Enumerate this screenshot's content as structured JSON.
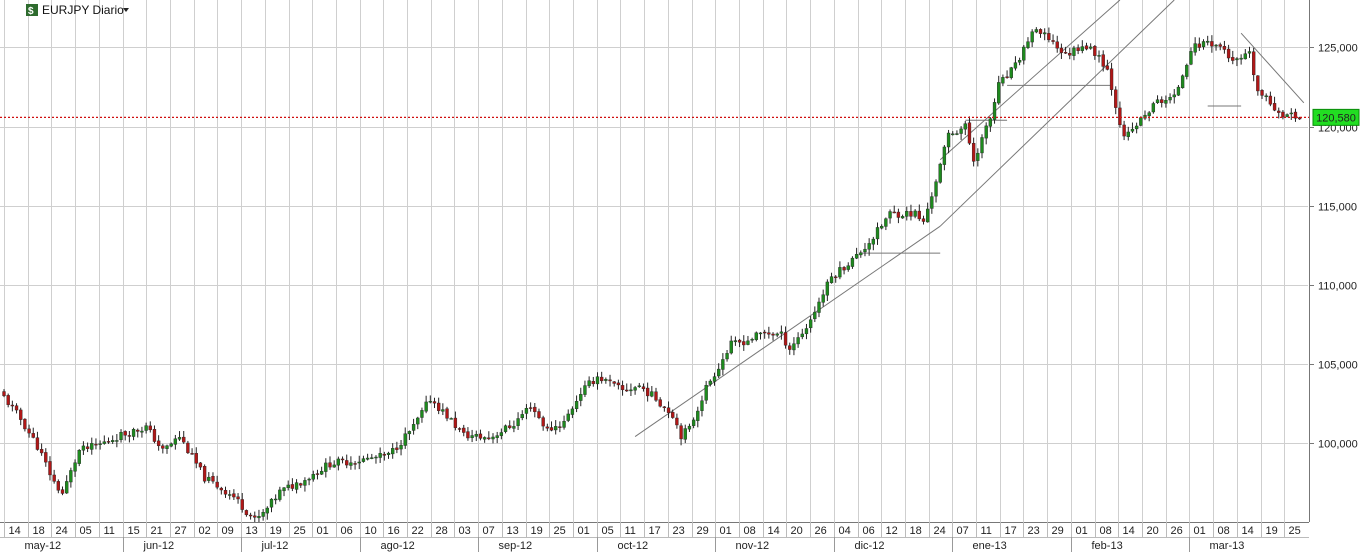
{
  "header": {
    "symbol_label": "EURJPY Diario",
    "icon": "chart-logo-icon",
    "dropdown_icon": "caret-down-icon"
  },
  "colors": {
    "up": "#1e8a1e",
    "down": "#b01717",
    "wick": "#222222",
    "grid": "#cfcfcf",
    "price_line": "#d01010",
    "price_badge": "#22dd22"
  },
  "chart_data": {
    "type": "candlestick",
    "title": "EURJPY Diario",
    "ylim": [
      95000,
      128000
    ],
    "y_ticks": [
      "100,000",
      "105,000",
      "110,000",
      "115,000",
      "120,000",
      "125,000"
    ],
    "last_price": "120,580",
    "x_day_labels": [
      "14",
      "18",
      "24",
      "05",
      "11",
      "15",
      "21",
      "27",
      "02",
      "09",
      "13",
      "19",
      "25",
      "01",
      "06",
      "10",
      "16",
      "22",
      "28",
      "03",
      "07",
      "13",
      "19",
      "25",
      "01",
      "05",
      "11",
      "17",
      "23",
      "29",
      "01",
      "08",
      "14",
      "20",
      "26",
      "04",
      "06",
      "12",
      "18",
      "24",
      "07",
      "11",
      "17",
      "23",
      "29",
      "01",
      "08",
      "14",
      "20",
      "26",
      "01",
      "08",
      "14",
      "19",
      "25"
    ],
    "x_month_labels": [
      "may-12",
      "jun-12",
      "jul-12",
      "ago-12",
      "sep-12",
      "oct-12",
      "nov-12",
      "dic-12",
      "ene-13",
      "feb-13",
      "mar-13"
    ],
    "close_keypoints": [
      [
        0,
        102900
      ],
      [
        4,
        101500
      ],
      [
        8,
        99800
      ],
      [
        12,
        97500
      ],
      [
        14,
        96800
      ],
      [
        18,
        99500
      ],
      [
        22,
        99800
      ],
      [
        28,
        100500
      ],
      [
        34,
        101000
      ],
      [
        38,
        99500
      ],
      [
        42,
        100400
      ],
      [
        48,
        97800
      ],
      [
        55,
        96600
      ],
      [
        60,
        95100
      ],
      [
        62,
        95500
      ],
      [
        66,
        96900
      ],
      [
        72,
        97700
      ],
      [
        78,
        98700
      ],
      [
        85,
        98900
      ],
      [
        92,
        99200
      ],
      [
        98,
        101000
      ],
      [
        102,
        102800
      ],
      [
        106,
        101700
      ],
      [
        110,
        100500
      ],
      [
        116,
        100300
      ],
      [
        122,
        101200
      ],
      [
        126,
        102400
      ],
      [
        130,
        100800
      ],
      [
        134,
        101300
      ],
      [
        138,
        103200
      ],
      [
        142,
        104200
      ],
      [
        148,
        103300
      ],
      [
        152,
        103600
      ],
      [
        156,
        102800
      ],
      [
        160,
        101800
      ],
      [
        162,
        100500
      ],
      [
        164,
        100900
      ],
      [
        168,
        103500
      ],
      [
        174,
        106200
      ],
      [
        178,
        106500
      ],
      [
        182,
        107000
      ],
      [
        186,
        106800
      ],
      [
        188,
        106000
      ],
      [
        192,
        107300
      ],
      [
        198,
        110500
      ],
      [
        204,
        111800
      ],
      [
        208,
        113000
      ],
      [
        212,
        114500
      ],
      [
        218,
        114500
      ],
      [
        220,
        113900
      ],
      [
        224,
        117500
      ],
      [
        226,
        119500
      ],
      [
        230,
        120000
      ],
      [
        232,
        117900
      ],
      [
        236,
        120500
      ],
      [
        238,
        122600
      ],
      [
        242,
        123800
      ],
      [
        246,
        126000
      ],
      [
        250,
        125600
      ],
      [
        254,
        124500
      ],
      [
        258,
        125200
      ],
      [
        262,
        124500
      ],
      [
        264,
        123600
      ],
      [
        268,
        119200
      ],
      [
        272,
        120400
      ],
      [
        276,
        121600
      ],
      [
        280,
        121800
      ],
      [
        284,
        124900
      ],
      [
        288,
        125400
      ],
      [
        292,
        124900
      ],
      [
        294,
        124000
      ],
      [
        298,
        124500
      ],
      [
        300,
        122200
      ],
      [
        304,
        121200
      ],
      [
        306,
        120800
      ],
      [
        310,
        120580
      ]
    ],
    "trendlines": [
      {
        "kind": "channel-lower-1",
        "from": [
          151,
          100400
        ],
        "to": [
          224,
          113700
        ]
      },
      {
        "kind": "channel-upper",
        "from": [
          224,
          117900
        ],
        "to": [
          267,
          128000
        ]
      },
      {
        "kind": "channel-lower-2",
        "from": [
          224,
          113700
        ],
        "to": [
          280,
          128000
        ]
      },
      {
        "kind": "resistance-dec",
        "from": [
          296,
          125900
        ],
        "to": [
          311,
          121500
        ]
      },
      {
        "kind": "level",
        "from": [
          205,
          112000
        ],
        "to": [
          224,
          112000
        ]
      },
      {
        "kind": "level",
        "from": [
          240,
          122600
        ],
        "to": [
          265,
          122600
        ]
      },
      {
        "kind": "level",
        "from": [
          230,
          120400
        ],
        "to": [
          240,
          120400
        ]
      },
      {
        "kind": "level",
        "from": [
          288,
          121300
        ],
        "to": [
          296,
          121300
        ]
      }
    ]
  }
}
